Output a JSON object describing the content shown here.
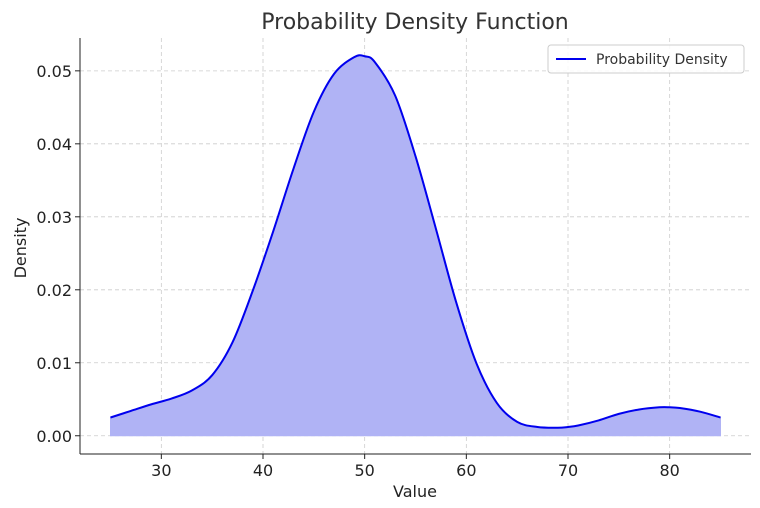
{
  "chart_data": {
    "type": "area",
    "title": "Probability Density Function",
    "xlabel": "Value",
    "ylabel": "Density",
    "xlim": [
      22,
      88
    ],
    "ylim": [
      -0.0025,
      0.0545
    ],
    "xticks": [
      30,
      40,
      50,
      60,
      70,
      80
    ],
    "xtick_labels": [
      "30",
      "40",
      "50",
      "60",
      "70",
      "80"
    ],
    "yticks": [
      0.0,
      0.01,
      0.02,
      0.03,
      0.04,
      0.05
    ],
    "ytick_labels": [
      "0.00",
      "0.01",
      "0.02",
      "0.03",
      "0.04",
      "0.05"
    ],
    "grid": true,
    "legend_position": "top-right",
    "series": [
      {
        "name": "Probability Density",
        "color": "#0000ee",
        "fill_color": "#b0b3f5",
        "x": [
          25,
          27,
          29,
          31,
          33,
          35,
          37,
          39,
          41,
          43,
          45,
          47,
          49,
          50,
          51,
          53,
          55,
          57,
          59,
          61,
          63,
          65,
          67,
          69,
          70,
          71,
          73,
          75,
          77,
          79,
          80,
          81,
          83,
          85
        ],
        "y": [
          0.0025,
          0.0034,
          0.0043,
          0.0051,
          0.0062,
          0.0083,
          0.0128,
          0.0199,
          0.028,
          0.0366,
          0.0444,
          0.0496,
          0.0519,
          0.052,
          0.0512,
          0.0466,
          0.0383,
          0.0284,
          0.0183,
          0.0099,
          0.0045,
          0.0019,
          0.0012,
          0.0011,
          0.0012,
          0.0014,
          0.0021,
          0.003,
          0.0036,
          0.0039,
          0.0039,
          0.0038,
          0.0033,
          0.0025
        ]
      }
    ]
  }
}
